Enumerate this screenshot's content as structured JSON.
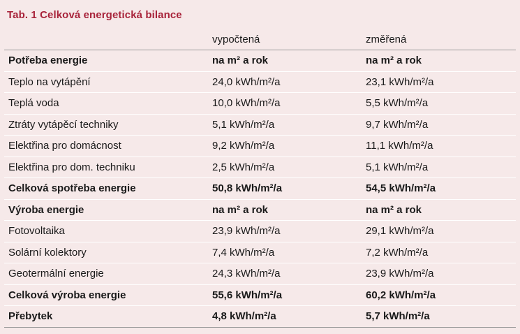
{
  "caption": "Tab. 1  Celková energetická bilance",
  "columns": {
    "label": "",
    "calculated": "vypočtená",
    "measured": "změřená"
  },
  "rows": [
    {
      "label": "Potřeba energie",
      "calculated": "na m² a rok",
      "measured": "na m² a rok",
      "bold": true
    },
    {
      "label": "Teplo na vytápění",
      "calculated": "24,0 kWh/m²/a",
      "measured": "23,1 kWh/m²/a",
      "bold": false
    },
    {
      "label": "Teplá voda",
      "calculated": "10,0 kWh/m²/a",
      "measured": "5,5 kWh/m²/a",
      "bold": false
    },
    {
      "label": "Ztráty vytápěcí techniky",
      "calculated": "5,1 kWh/m²/a",
      "measured": "9,7 kWh/m²/a",
      "bold": false
    },
    {
      "label": "Elektřina pro domácnost",
      "calculated": "9,2 kWh/m²/a",
      "measured": "11,1 kWh/m²/a",
      "bold": false
    },
    {
      "label": "Elektřina pro dom. techniku",
      "calculated": "2,5 kWh/m²/a",
      "measured": "5,1 kWh/m²/a",
      "bold": false
    },
    {
      "label": "Celková spotřeba energie",
      "calculated": "50,8 kWh/m²/a",
      "measured": "54,5 kWh/m²/a",
      "bold": true
    },
    {
      "label": "Výroba energie",
      "calculated": "na m² a rok",
      "measured": "na m² a rok",
      "bold": true
    },
    {
      "label": "Fotovoltaika",
      "calculated": "23,9 kWh/m²/a",
      "measured": "29,1 kWh/m²/a",
      "bold": false
    },
    {
      "label": "Solární kolektory",
      "calculated": "7,4 kWh/m²/a",
      "measured": "7,2 kWh/m²/a",
      "bold": false
    },
    {
      "label": "Geotermální energie",
      "calculated": "24,3 kWh/m²/a",
      "measured": "23,9 kWh/m²/a",
      "bold": false
    },
    {
      "label": "Celková výroba energie",
      "calculated": "55,6 kWh/m²/a",
      "measured": "60,2 kWh/m²/a",
      "bold": true
    },
    {
      "label": "Přebytek",
      "calculated": "4,8 kWh/m²/a",
      "measured": "5,7 kWh/m²/a",
      "bold": true
    }
  ],
  "colors": {
    "background": "#f6e9e9",
    "caption": "#a8233a",
    "rule": "#9a9a9a"
  }
}
